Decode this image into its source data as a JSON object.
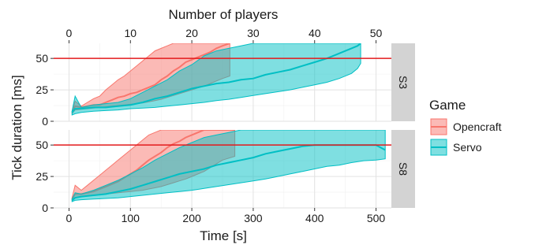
{
  "chart_data": {
    "type": "area",
    "title": "",
    "xlabel": "Time [s]",
    "x2label": "Number of players",
    "ylabel": "Tick duration [ms]",
    "xlim": [
      -25,
      525
    ],
    "ylim": [
      0,
      62
    ],
    "x_ticks": [
      0,
      100,
      200,
      300,
      400,
      500
    ],
    "x2_ticks": [
      0,
      10,
      20,
      30,
      40,
      50
    ],
    "y_ticks": [
      0,
      25,
      50
    ],
    "threshold_ms": 50,
    "grid": true,
    "legend": {
      "title": "Game",
      "placement": "right",
      "entries": [
        {
          "name": "Opencraft",
          "color": "#F8766D"
        },
        {
          "name": "Servo",
          "color": "#00BFC4"
        }
      ]
    },
    "colors": {
      "threshold": "#e41a1c",
      "strip": "#d3d3d3",
      "opencraft": "#F8766D",
      "servo": "#00BFC4"
    },
    "facets": [
      {
        "label": "S3",
        "series": [
          {
            "game": "Opencraft",
            "name": "Opencraft",
            "x": [
              5,
              10,
              20,
              30,
              40,
              50,
              60,
              70,
              80,
              90,
              100,
              110,
              120,
              130,
              140,
              150,
              160,
              170,
              180,
              190,
              200,
              210,
              220,
              230,
              240,
              250,
              262
            ],
            "low": [
              6,
              9,
              9.5,
              10,
              10.5,
              11,
              11.5,
              12,
              12.5,
              13,
              13.5,
              14,
              14.5,
              15.5,
              16.5,
              17.5,
              19,
              20.5,
              22,
              23.5,
              25,
              26.5,
              28,
              30,
              32,
              34,
              36
            ],
            "mid": [
              7,
              12,
              11,
              12,
              13,
              13,
              15,
              17,
              19,
              20,
              22,
              23,
              25,
              27,
              29,
              33,
              36,
              40,
              43,
              47,
              49,
              51,
              53,
              55,
              58,
              60,
              62
            ],
            "high": [
              8,
              16,
              12,
              15,
              18,
              20,
              25,
              29,
              33,
              36,
              40,
              44,
              48,
              52,
              56,
              58,
              60,
              62,
              62,
              62,
              62,
              62,
              62,
              62,
              62,
              62,
              62
            ]
          },
          {
            "game": "Servo",
            "name": "Servo",
            "x": [
              5,
              10,
              20,
              40,
              60,
              80,
              100,
              120,
              140,
              160,
              180,
              200,
              220,
              240,
              260,
              280,
              300,
              320,
              340,
              360,
              380,
              400,
              420,
              440,
              460,
              470,
              475
            ],
            "low": [
              5,
              6,
              7,
              8,
              8.5,
              9,
              10,
              10.5,
              11,
              12,
              13,
              14,
              15,
              16.5,
              17.5,
              19,
              20.5,
              22,
              23.5,
              25,
              27,
              29,
              31,
              34,
              38,
              42,
              46
            ],
            "mid": [
              7,
              10,
              10,
              11,
              11,
              12,
              13,
              15,
              18,
              20,
              23,
              26,
              28,
              30,
              31,
              33,
              34,
              37,
              39,
              41,
              44,
              47,
              50,
              54,
              58,
              60,
              62
            ],
            "high": [
              8,
              20,
              11,
              13,
              14,
              15,
              18,
              23,
              28,
              33,
              40,
              45,
              52,
              56,
              58,
              60,
              62,
              62,
              62,
              62,
              62,
              62,
              62,
              62,
              62,
              62,
              62
            ]
          }
        ]
      },
      {
        "label": "S8",
        "series": [
          {
            "game": "Opencraft",
            "name": "Opencraft",
            "x": [
              5,
              10,
              20,
              30,
              40,
              50,
              60,
              70,
              80,
              90,
              100,
              110,
              120,
              130,
              140,
              150,
              160,
              170,
              180,
              190,
              200,
              210,
              220,
              230,
              240,
              250,
              270
            ],
            "low": [
              6,
              8,
              9,
              9.5,
              10,
              10.5,
              11,
              11.5,
              12,
              12.5,
              13,
              13.5,
              14,
              15,
              16,
              17,
              18.5,
              20,
              21.5,
              23,
              25,
              27,
              29,
              32,
              35,
              38,
              41
            ],
            "mid": [
              7,
              11,
              11,
              12,
              13,
              15,
              17,
              19,
              21,
              24,
              27,
              30,
              34,
              38,
              41,
              44,
              48,
              51,
              53,
              56,
              58,
              60,
              62,
              62,
              62,
              62,
              62
            ],
            "high": [
              8,
              18,
              14,
              18,
              22,
              26,
              30,
              34,
              38,
              42,
              46,
              50,
              54,
              58,
              60,
              62,
              62,
              62,
              62,
              62,
              62,
              62,
              62,
              62,
              62,
              62,
              62
            ]
          },
          {
            "game": "Servo",
            "name": "Servo",
            "x": [
              5,
              10,
              20,
              40,
              60,
              80,
              100,
              120,
              140,
              160,
              180,
              200,
              220,
              240,
              260,
              280,
              300,
              320,
              340,
              360,
              380,
              400,
              420,
              440,
              460,
              480,
              500,
              515
            ],
            "low": [
              5,
              6,
              6.5,
              7,
              7.5,
              8,
              9,
              10,
              11,
              12,
              13,
              14,
              15.5,
              17,
              18.5,
              20,
              21.5,
              23,
              25,
              27,
              29,
              31,
              33,
              34,
              36,
              37.5,
              38,
              39
            ],
            "mid": [
              6,
              8,
              9,
              10,
              11,
              13,
              15,
              18,
              21,
              24,
              27,
              29,
              31,
              34,
              36,
              38,
              40,
              43,
              45,
              47,
              49,
              50,
              50,
              50,
              50,
              50,
              50,
              46
            ],
            "high": [
              7,
              12,
              11,
              14,
              18,
              22,
              27,
              32,
              38,
              43,
              48,
              52,
              56,
              58,
              60,
              62,
              62,
              62,
              62,
              62,
              62,
              62,
              62,
              62,
              62,
              62,
              62,
              62
            ]
          }
        ]
      }
    ]
  }
}
